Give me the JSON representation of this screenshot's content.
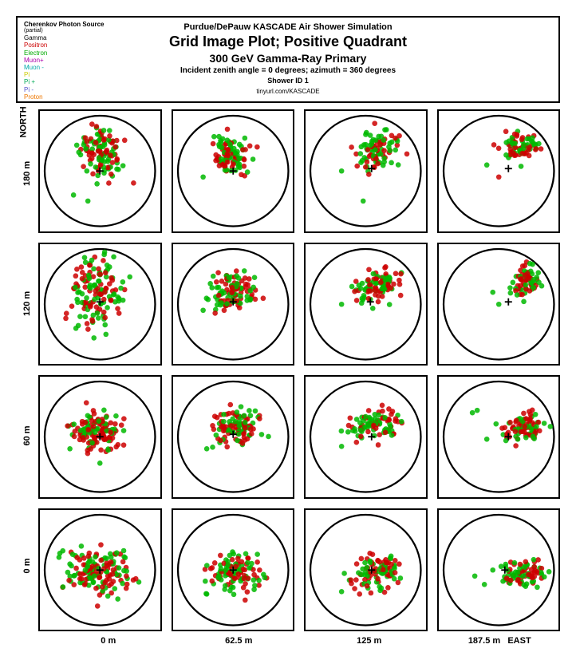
{
  "header": {
    "legend_title": "Cherenkov Photon Source",
    "legend_sub": "(partial)",
    "legend_items": [
      {
        "label": "Gamma",
        "color": "#000000"
      },
      {
        "label": "Positron",
        "color": "#cc0000"
      },
      {
        "label": "Electron",
        "color": "#00aa00"
      },
      {
        "label": "Muon+",
        "color": "#aa00aa"
      },
      {
        "label": "Muon -",
        "color": "#00aaaa"
      },
      {
        "label": "Pi",
        "color": "#cccc00"
      },
      {
        "label": "Pi +",
        "color": "#00aa55"
      },
      {
        "label": "Pi -",
        "color": "#5555cc"
      },
      {
        "label": "Proton",
        "color": "#ee7700"
      }
    ],
    "supertitle": "Purdue/DePauw KASCADE Air Shower Simulation",
    "title": "Grid Image Plot; Positive Quadrant",
    "subtitle": "300 GeV Gamma-Ray Primary",
    "angles": "Incident zenith angle =  0 degrees;  azimuth =  360 degrees",
    "shower": "Shower ID 1",
    "url": "tinyurl.com/KASCADE"
  },
  "axes": {
    "north_label": "NORTH",
    "east_label": "EAST",
    "y_ticks": [
      "180 m",
      "120 m",
      "60 m",
      "0 m"
    ],
    "x_ticks": [
      "0 m",
      "62.5 m",
      "125 m",
      "187.5 m"
    ]
  },
  "plot": {
    "circle_stroke": "#000000",
    "circle_stroke_width": 1.5,
    "cross_stroke": "#000000",
    "cross_size": 6,
    "point_radius": 2.2,
    "colors": {
      "red": "#cc0000",
      "green": "#00b800"
    },
    "cells": [
      {
        "row": 0,
        "col": 0,
        "cross": [
          50,
          50
        ],
        "cluster": [
          50,
          35
        ],
        "spread": [
          14,
          18
        ],
        "angle": 0,
        "n": 120,
        "ratio": 0.52,
        "outliers": [
          [
            28,
            70,
            "g"
          ],
          [
            78,
            60,
            "r"
          ],
          [
            40,
            75,
            "g"
          ]
        ]
      },
      {
        "row": 0,
        "col": 1,
        "cross": [
          50,
          50
        ],
        "cluster": [
          47,
          35
        ],
        "spread": [
          12,
          16
        ],
        "angle": -10,
        "n": 100,
        "ratio": 0.5,
        "outliers": [
          [
            25,
            55,
            "g"
          ],
          [
            70,
            30,
            "r"
          ]
        ]
      },
      {
        "row": 0,
        "col": 2,
        "cross": [
          55,
          48
        ],
        "cluster": [
          60,
          32
        ],
        "spread": [
          16,
          12
        ],
        "angle": -30,
        "n": 90,
        "ratio": 0.5,
        "outliers": [
          [
            30,
            50,
            "g"
          ],
          [
            48,
            75,
            "g"
          ]
        ]
      },
      {
        "row": 0,
        "col": 3,
        "cross": [
          58,
          48
        ],
        "cluster": [
          70,
          28
        ],
        "spread": [
          14,
          10
        ],
        "angle": -35,
        "n": 85,
        "ratio": 0.5,
        "outliers": [
          [
            40,
            45,
            "g"
          ],
          [
            50,
            55,
            "r"
          ]
        ]
      },
      {
        "row": 1,
        "col": 0,
        "cross": [
          50,
          48
        ],
        "cluster": [
          45,
          40
        ],
        "spread": [
          18,
          22
        ],
        "angle": 0,
        "n": 140,
        "ratio": 0.45,
        "outliers": [
          [
            45,
            78,
            "g"
          ],
          [
            30,
            70,
            "g"
          ],
          [
            55,
            75,
            "g"
          ]
        ]
      },
      {
        "row": 1,
        "col": 1,
        "cross": [
          50,
          48
        ],
        "cluster": [
          50,
          38
        ],
        "spread": [
          16,
          14
        ],
        "angle": -15,
        "n": 110,
        "ratio": 0.5,
        "outliers": [
          [
            25,
            55,
            "g"
          ],
          [
            75,
            45,
            "r"
          ]
        ]
      },
      {
        "row": 1,
        "col": 2,
        "cross": [
          54,
          48
        ],
        "cluster": [
          60,
          35
        ],
        "spread": [
          18,
          11
        ],
        "angle": -30,
        "n": 95,
        "ratio": 0.52,
        "outliers": [
          [
            30,
            50,
            "g"
          ],
          [
            78,
            30,
            "r"
          ]
        ]
      },
      {
        "row": 1,
        "col": 3,
        "cross": [
          58,
          48
        ],
        "cluster": [
          72,
          30
        ],
        "spread": [
          14,
          9
        ],
        "angle": -35,
        "n": 70,
        "ratio": 0.5,
        "outliers": [
          [
            45,
            40,
            "g"
          ],
          [
            50,
            50,
            "g"
          ]
        ]
      },
      {
        "row": 2,
        "col": 0,
        "cross": [
          50,
          50
        ],
        "cluster": [
          48,
          45
        ],
        "spread": [
          18,
          15
        ],
        "angle": 0,
        "n": 130,
        "ratio": 0.48,
        "outliers": [
          [
            25,
            60,
            "g"
          ],
          [
            70,
            35,
            "r"
          ],
          [
            50,
            72,
            "g"
          ]
        ]
      },
      {
        "row": 2,
        "col": 1,
        "cross": [
          50,
          48
        ],
        "cluster": [
          52,
          42
        ],
        "spread": [
          16,
          13
        ],
        "angle": -15,
        "n": 110,
        "ratio": 0.5,
        "outliers": [
          [
            28,
            60,
            "g"
          ],
          [
            72,
            35,
            "r"
          ]
        ]
      },
      {
        "row": 2,
        "col": 2,
        "cross": [
          55,
          50
        ],
        "cluster": [
          58,
          42
        ],
        "spread": [
          18,
          12
        ],
        "angle": -25,
        "n": 95,
        "ratio": 0.5,
        "outliers": [
          [
            30,
            58,
            "g"
          ],
          [
            75,
            35,
            "r"
          ]
        ]
      },
      {
        "row": 2,
        "col": 3,
        "cross": [
          58,
          50
        ],
        "cluster": [
          72,
          42
        ],
        "spread": [
          16,
          9
        ],
        "angle": -20,
        "n": 85,
        "ratio": 0.5,
        "outliers": [
          [
            28,
            30,
            "g"
          ],
          [
            32,
            28,
            "g"
          ],
          [
            40,
            52,
            "g"
          ]
        ]
      },
      {
        "row": 3,
        "col": 0,
        "cross": [
          50,
          50
        ],
        "cluster": [
          48,
          52
        ],
        "spread": [
          22,
          15
        ],
        "angle": 0,
        "n": 150,
        "ratio": 0.48,
        "outliers": [
          [
            48,
            80,
            "r"
          ],
          [
            25,
            45,
            "g"
          ],
          [
            72,
            55,
            "r"
          ]
        ]
      },
      {
        "row": 3,
        "col": 1,
        "cross": [
          50,
          50
        ],
        "cluster": [
          52,
          52
        ],
        "spread": [
          18,
          13
        ],
        "angle": -5,
        "n": 110,
        "ratio": 0.5,
        "outliers": [
          [
            28,
            70,
            "g"
          ],
          [
            60,
            75,
            "r"
          ],
          [
            72,
            50,
            "r"
          ]
        ]
      },
      {
        "row": 3,
        "col": 2,
        "cross": [
          55,
          50
        ],
        "cluster": [
          62,
          52
        ],
        "spread": [
          20,
          11
        ],
        "angle": -10,
        "n": 95,
        "ratio": 0.5,
        "outliers": [
          [
            30,
            68,
            "g"
          ],
          [
            45,
            70,
            "r"
          ],
          [
            78,
            45,
            "r"
          ]
        ]
      },
      {
        "row": 3,
        "col": 3,
        "cross": [
          55,
          50
        ],
        "cluster": [
          72,
          52
        ],
        "spread": [
          16,
          10
        ],
        "angle": -10,
        "n": 85,
        "ratio": 0.5,
        "outliers": [
          [
            30,
            55,
            "g"
          ],
          [
            38,
            62,
            "g"
          ],
          [
            45,
            50,
            "g"
          ]
        ]
      }
    ]
  }
}
